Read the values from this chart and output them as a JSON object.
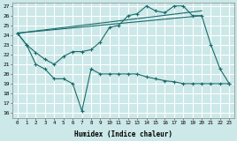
{
  "background_color": "#cce8e8",
  "grid_color": "#ffffff",
  "line_color": "#1a6b6b",
  "x_min": 0,
  "x_max": 23,
  "y_min": 16,
  "y_max": 27,
  "xlabel": "Humidex (Indice chaleur)",
  "x_ticks": [
    0,
    1,
    2,
    3,
    4,
    5,
    6,
    7,
    8,
    9,
    10,
    11,
    12,
    13,
    14,
    15,
    16,
    17,
    18,
    19,
    20,
    21,
    22,
    23
  ],
  "y_ticks": [
    16,
    17,
    18,
    19,
    20,
    21,
    22,
    23,
    24,
    25,
    26,
    27
  ],
  "series": [
    {
      "x": [
        0,
        20
      ],
      "y": [
        24.2,
        26.0
      ],
      "marker": false
    },
    {
      "x": [
        0,
        20
      ],
      "y": [
        24.2,
        26.5
      ],
      "marker": false
    },
    {
      "x": [
        0,
        1,
        2,
        3,
        4,
        5,
        6,
        7,
        8,
        9,
        10,
        11,
        12,
        13,
        14,
        15,
        16,
        17,
        18,
        19,
        20,
        21,
        22,
        23
      ],
      "y": [
        24.2,
        23.0,
        21.0,
        20.5,
        19.5,
        19.5,
        19.0,
        16.2,
        20.5,
        20.0,
        20.0,
        20.0,
        20.0,
        20.0,
        19.7,
        19.5,
        19.3,
        19.2,
        19.0,
        19.0,
        19.0,
        19.0,
        19.0,
        19.0
      ],
      "marker": true
    },
    {
      "x": [
        0,
        1,
        2,
        3,
        4,
        5,
        6,
        7,
        8,
        9,
        10,
        11,
        12,
        13,
        14,
        15,
        16,
        17,
        18,
        19,
        20,
        21,
        22,
        23
      ],
      "y": [
        24.2,
        23.0,
        22.2,
        21.5,
        21.0,
        21.8,
        22.3,
        22.3,
        22.5,
        23.3,
        24.8,
        25.0,
        26.0,
        26.2,
        27.0,
        26.5,
        26.3,
        27.0,
        27.0,
        26.0,
        26.0,
        23.0,
        20.5,
        19.0
      ],
      "marker": true
    }
  ]
}
